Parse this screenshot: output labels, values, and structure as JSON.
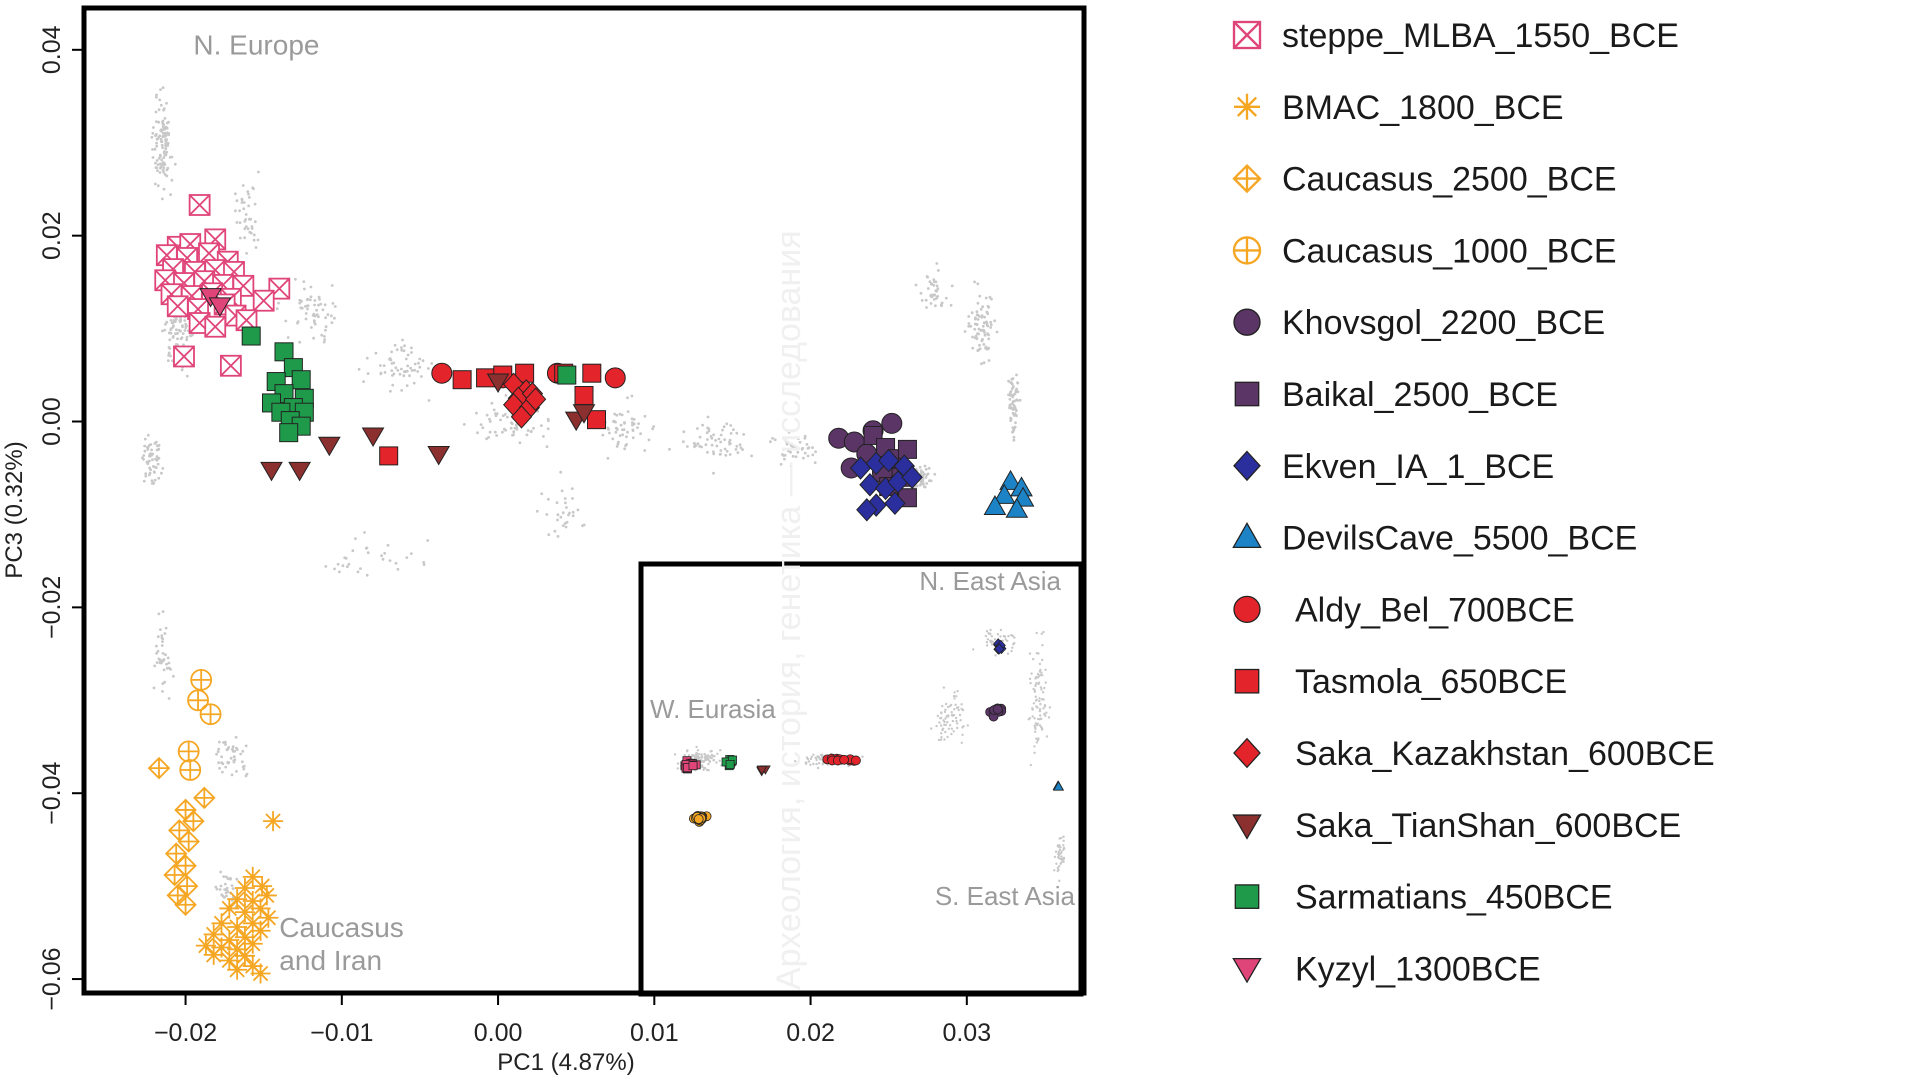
{
  "chart_data": {
    "type": "scatter",
    "xlabel": "PC1 (4.87%)",
    "ylabel": "PC3 (0.32%)",
    "xlim": [
      -0.0265,
      0.0375
    ],
    "ylim": [
      -0.0615,
      0.0445
    ],
    "xticks": [
      -0.02,
      -0.01,
      0.0,
      0.01,
      0.02,
      0.03
    ],
    "xtick_labels": [
      "−0.02",
      "−0.01",
      "0.00",
      "0.01",
      "0.02",
      "0.03"
    ],
    "yticks": [
      0.04,
      0.02,
      0.0,
      -0.02,
      -0.04,
      -0.06
    ],
    "ytick_labels": [
      "0.04",
      "0.02",
      "0.00",
      "−0.02",
      "−0.04",
      "−0.06"
    ],
    "grid": false,
    "legend_position": "right",
    "region_labels": [
      {
        "text": "N. Europe",
        "x": -0.0195,
        "y": 0.0395
      },
      {
        "text": "Caucasus",
        "x": -0.014,
        "y": -0.0555
      },
      {
        "text": "and Iran",
        "x": -0.014,
        "y": -0.059
      }
    ],
    "inset": {
      "labels": [
        "N. East Asia",
        "W. Eurasia",
        "S. East Asia"
      ],
      "colors": [
        "#e0457a",
        "#f5a623",
        "#1f9a4a",
        "#8b2f2f",
        "#e3242b",
        "#5b3566",
        "#2b2f9e",
        "#1c84c6"
      ]
    },
    "watermark": "Археология, история, генетика — исследования",
    "background_points": {
      "color": "#c8c8c8"
    },
    "series": [
      {
        "name": "steppe_MLBA_1550_BCE",
        "marker": "boxx",
        "color": "#e0457a",
        "points": [
          [
            -0.0191,
            0.0233
          ],
          [
            -0.0205,
            0.0188
          ],
          [
            -0.0197,
            0.0191
          ],
          [
            -0.0181,
            0.0196
          ],
          [
            -0.0212,
            0.0179
          ],
          [
            -0.0199,
            0.0176
          ],
          [
            -0.0185,
            0.0181
          ],
          [
            -0.0173,
            0.0172
          ],
          [
            -0.0208,
            0.0164
          ],
          [
            -0.0194,
            0.0161
          ],
          [
            -0.0181,
            0.0163
          ],
          [
            -0.0169,
            0.0161
          ],
          [
            -0.0213,
            0.0152
          ],
          [
            -0.0201,
            0.0149
          ],
          [
            -0.0188,
            0.0151
          ],
          [
            -0.0176,
            0.0147
          ],
          [
            -0.0163,
            0.0146
          ],
          [
            -0.0209,
            0.0137
          ],
          [
            -0.0196,
            0.0135
          ],
          [
            -0.0183,
            0.0138
          ],
          [
            -0.0171,
            0.0132
          ],
          [
            -0.0205,
            0.0124
          ],
          [
            -0.0192,
            0.0121
          ],
          [
            -0.0175,
            0.0126
          ],
          [
            -0.014,
            0.0143
          ],
          [
            -0.015,
            0.013
          ],
          [
            -0.0191,
            0.0106
          ],
          [
            -0.0181,
            0.0102
          ],
          [
            -0.0168,
            0.0114
          ],
          [
            -0.0161,
            0.0109
          ],
          [
            -0.0201,
            0.007
          ],
          [
            -0.0171,
            0.006
          ]
        ]
      },
      {
        "name": "BMAC_1800_BCE",
        "marker": "star",
        "color": "#f5a623",
        "points": [
          [
            -0.0144,
            -0.043
          ],
          [
            -0.0157,
            -0.049
          ],
          [
            -0.0151,
            -0.05
          ],
          [
            -0.0162,
            -0.0502
          ],
          [
            -0.0148,
            -0.051
          ],
          [
            -0.0157,
            -0.0516
          ],
          [
            -0.0167,
            -0.0514
          ],
          [
            -0.0152,
            -0.0524
          ],
          [
            -0.0162,
            -0.0528
          ],
          [
            -0.0147,
            -0.0534
          ],
          [
            -0.0172,
            -0.0524
          ],
          [
            -0.0157,
            -0.054
          ],
          [
            -0.0167,
            -0.0544
          ],
          [
            -0.0152,
            -0.0548
          ],
          [
            -0.0177,
            -0.054
          ],
          [
            -0.0162,
            -0.0555
          ],
          [
            -0.0172,
            -0.0558
          ],
          [
            -0.0157,
            -0.0562
          ],
          [
            -0.0167,
            -0.0568
          ],
          [
            -0.0177,
            -0.0566
          ],
          [
            -0.0162,
            -0.0575
          ],
          [
            -0.0172,
            -0.058
          ],
          [
            -0.0182,
            -0.0574
          ],
          [
            -0.0157,
            -0.0586
          ],
          [
            -0.0167,
            -0.059
          ],
          [
            -0.0152,
            -0.0594
          ],
          [
            -0.0187,
            -0.0564
          ],
          [
            -0.0182,
            -0.0552
          ]
        ]
      },
      {
        "name": "Caucasus_2500_BCE",
        "marker": "diamondplus",
        "color": "#f5a623",
        "points": [
          [
            -0.0217,
            -0.0373
          ],
          [
            -0.0188,
            -0.0405
          ],
          [
            -0.02,
            -0.0418
          ],
          [
            -0.0195,
            -0.043
          ],
          [
            -0.0204,
            -0.044
          ],
          [
            -0.0198,
            -0.0452
          ],
          [
            -0.0206,
            -0.0465
          ],
          [
            -0.02,
            -0.0478
          ],
          [
            -0.0207,
            -0.0488
          ],
          [
            -0.0199,
            -0.05
          ],
          [
            -0.0205,
            -0.051
          ],
          [
            -0.02,
            -0.052
          ]
        ]
      },
      {
        "name": "Caucasus_1000_BCE",
        "marker": "circleplus",
        "color": "#f5a623",
        "points": [
          [
            -0.019,
            -0.0278
          ],
          [
            -0.0192,
            -0.03
          ],
          [
            -0.0184,
            -0.0315
          ],
          [
            -0.0198,
            -0.0355
          ],
          [
            -0.0197,
            -0.0375
          ]
        ]
      },
      {
        "name": "Khovsgol_2200_BCE",
        "marker": "circle",
        "color": "#5b3566",
        "points": [
          [
            0.0218,
            -0.0018
          ],
          [
            0.0228,
            -0.0022
          ],
          [
            0.024,
            -0.001
          ],
          [
            0.0252,
            -0.0002
          ],
          [
            0.0236,
            -0.0035
          ],
          [
            0.0246,
            -0.0055
          ],
          [
            0.0226,
            -0.005
          ]
        ]
      },
      {
        "name": "Baikal_2500_BCE",
        "marker": "square",
        "color": "#5b3566",
        "points": [
          [
            0.024,
            -0.0015
          ],
          [
            0.0248,
            -0.0028
          ],
          [
            0.0256,
            -0.004
          ],
          [
            0.0262,
            -0.003
          ],
          [
            0.0258,
            -0.006
          ],
          [
            0.025,
            -0.007
          ],
          [
            0.0262,
            -0.0082
          ]
        ]
      },
      {
        "name": "Ekven_IA_1_BCE",
        "marker": "diamond",
        "color": "#2b2f9e",
        "points": [
          [
            0.0232,
            -0.005
          ],
          [
            0.0242,
            -0.0045
          ],
          [
            0.025,
            -0.0042
          ],
          [
            0.026,
            -0.0048
          ],
          [
            0.0238,
            -0.0068
          ],
          [
            0.0248,
            -0.0072
          ],
          [
            0.0256,
            -0.0065
          ],
          [
            0.0265,
            -0.006
          ],
          [
            0.0242,
            -0.009
          ],
          [
            0.0254,
            -0.0088
          ],
          [
            0.0236,
            -0.0095
          ]
        ]
      },
      {
        "name": "DevilsCave_5500_BCE",
        "marker": "triangle",
        "color": "#1c84c6",
        "points": [
          [
            0.0328,
            -0.0065
          ],
          [
            0.0335,
            -0.0072
          ],
          [
            0.0324,
            -0.008
          ],
          [
            0.0336,
            -0.0083
          ],
          [
            0.0318,
            -0.0092
          ],
          [
            0.0332,
            -0.0095
          ]
        ]
      },
      {
        "name": "Aldy_Bel_700BCE",
        "marker": "circle",
        "color": "#e3242b",
        "points": [
          [
            -0.0036,
            0.0052
          ],
          [
            0.0003,
            0.0047
          ],
          [
            0.0038,
            0.0052
          ],
          [
            0.0075,
            0.0047
          ]
        ]
      },
      {
        "name": "Tasmola_650BCE",
        "marker": "square",
        "color": "#e3242b",
        "points": [
          [
            -0.0023,
            0.0045
          ],
          [
            -0.0008,
            0.0047
          ],
          [
            0.0003,
            0.005
          ],
          [
            0.0017,
            0.0052
          ],
          [
            0.0042,
            0.0052
          ],
          [
            0.006,
            0.0052
          ],
          [
            0.0055,
            0.0028
          ],
          [
            0.0063,
            0.0002
          ],
          [
            -0.007,
            -0.0037
          ]
        ]
      },
      {
        "name": "Saka_Kazakhstan_600BCE",
        "marker": "diamond",
        "color": "#e3242b",
        "points": [
          [
            0.001,
            0.004
          ],
          [
            0.0018,
            0.0033
          ],
          [
            0.0013,
            0.0025
          ],
          [
            0.0022,
            0.003
          ],
          [
            0.001,
            0.0018
          ],
          [
            0.002,
            0.0015
          ],
          [
            0.0015,
            0.0005
          ],
          [
            0.0024,
            0.0024
          ]
        ]
      },
      {
        "name": "Saka_TianShan_600BCE",
        "marker": "tridown",
        "color": "#8b2f2f",
        "points": [
          [
            0.0,
            0.0043
          ],
          [
            0.005,
            0.0002
          ],
          [
            0.0055,
            0.001
          ],
          [
            -0.008,
            -0.0015
          ],
          [
            -0.0108,
            -0.0025
          ],
          [
            -0.0038,
            -0.0035
          ],
          [
            -0.0127,
            -0.0052
          ],
          [
            -0.0145,
            -0.0052
          ]
        ]
      },
      {
        "name": "Sarmatians_450BCE",
        "marker": "square",
        "color": "#1f9a4a",
        "points": [
          [
            -0.0158,
            0.0092
          ],
          [
            -0.0137,
            0.0075
          ],
          [
            -0.0131,
            0.0058
          ],
          [
            -0.0142,
            0.0043
          ],
          [
            -0.0126,
            0.0045
          ],
          [
            -0.0137,
            0.003
          ],
          [
            -0.0124,
            0.0025
          ],
          [
            -0.0145,
            0.002
          ],
          [
            -0.0131,
            0.0015
          ],
          [
            -0.0139,
            0.001
          ],
          [
            -0.0124,
            0.001
          ],
          [
            -0.0133,
            0.0001
          ],
          [
            -0.0126,
            -0.0005
          ],
          [
            -0.0134,
            -0.0012
          ],
          [
            0.0044,
            0.005
          ]
        ]
      },
      {
        "name": "Kyzyl_1300BCE",
        "marker": "tridown",
        "color": "#e0457a",
        "points": [
          [
            -0.0184,
            0.0135
          ],
          [
            -0.0178,
            0.0125
          ]
        ]
      }
    ]
  }
}
